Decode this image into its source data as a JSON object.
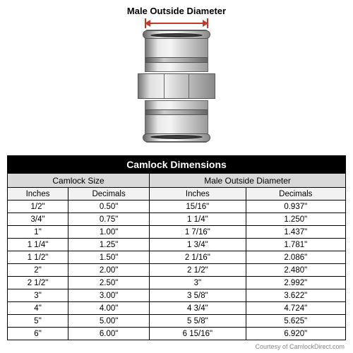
{
  "diagram": {
    "label": "Male Outside Diameter",
    "arrow_color": "#c0392b",
    "metal_gradient": [
      "#777",
      "#e8e8e8",
      "#f5f5f5",
      "#d5d5d5",
      "#9a9a9a"
    ]
  },
  "table_title": "Camlock Dimensions",
  "group_headers": [
    "Camlock Size",
    "Male Outside Diameter"
  ],
  "column_headers": [
    "Inches",
    "Decimals",
    "Inches",
    "Decimals"
  ],
  "rows": [
    [
      "1/2\"",
      "0.50\"",
      "15/16\"",
      "0.937\""
    ],
    [
      "3/4\"",
      "0.75\"",
      "1 1/4\"",
      "1.250\""
    ],
    [
      "1\"",
      "1.00\"",
      "1 7/16\"",
      "1.437\""
    ],
    [
      "1 1/4\"",
      "1.25\"",
      "1 3/4\"",
      "1.781\""
    ],
    [
      "1 1/2\"",
      "1.50\"",
      "2 1/16\"",
      "2.086\""
    ],
    [
      "2\"",
      "2.00\"",
      "2 1/2\"",
      "2.480\""
    ],
    [
      "2 1/2\"",
      "2.50\"",
      "3\"",
      "2.992\""
    ],
    [
      "3\"",
      "3.00\"",
      "3 5/8\"",
      "3.622\""
    ],
    [
      "4\"",
      "4.00\"",
      "4 3/4\"",
      "4.724\""
    ],
    [
      "5\"",
      "5.00\"",
      "5 5/8\"",
      "5.625\""
    ],
    [
      "6\"",
      "6.00\"",
      "6 15/16\"",
      "6.920\""
    ]
  ],
  "credit": "Courtesy of CamlockDirect.com",
  "styling": {
    "title_bg": "#000000",
    "title_fg": "#ffffff",
    "group_bg": "#d9d9d9",
    "header_bg": "#f2f2f2",
    "border_color": "#000000",
    "body_font_size": 11.5,
    "title_font_size": 14
  }
}
